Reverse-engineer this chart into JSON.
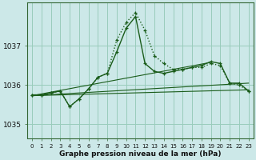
{
  "background_color": "#cce8e8",
  "plot_bg_color": "#cce8e8",
  "grid_color": "#99ccbb",
  "line_color": "#1a5c1a",
  "xlabel": "Graphe pression niveau de la mer (hPa)",
  "ylim": [
    1034.65,
    1038.1
  ],
  "xlim": [
    -0.5,
    23.5
  ],
  "yticks": [
    1035,
    1036,
    1037
  ],
  "xticks": [
    0,
    1,
    2,
    3,
    4,
    5,
    6,
    7,
    8,
    9,
    10,
    11,
    12,
    13,
    14,
    15,
    16,
    17,
    18,
    19,
    20,
    21,
    22,
    23
  ],
  "series": [
    {
      "x": [
        0,
        1,
        2,
        3,
        4,
        5,
        6,
        7,
        8,
        9,
        10,
        11,
        12,
        13,
        14,
        15,
        16,
        17,
        18,
        19,
        20,
        21,
        22,
        23
      ],
      "y": [
        1035.75,
        1035.75,
        1035.8,
        1035.85,
        1035.45,
        1035.65,
        1035.9,
        1036.2,
        1036.3,
        1037.15,
        1037.6,
        1037.85,
        1037.4,
        1036.75,
        1036.55,
        1036.4,
        1036.4,
        1036.45,
        1036.45,
        1036.55,
        1036.5,
        1036.05,
        1036.0,
        1035.85
      ],
      "style": ":",
      "marker": "+",
      "lw": 1.0,
      "ms": 3.5
    },
    {
      "x": [
        0,
        1,
        2,
        3,
        4,
        5,
        6,
        7,
        8,
        9,
        10,
        11,
        12,
        13,
        14,
        15,
        16,
        17,
        18,
        19,
        20,
        21,
        22,
        23
      ],
      "y": [
        1035.75,
        1035.75,
        1035.8,
        1035.85,
        1035.45,
        1035.65,
        1035.9,
        1036.2,
        1036.3,
        1036.85,
        1037.45,
        1037.75,
        1036.55,
        1036.35,
        1036.3,
        1036.35,
        1036.4,
        1036.45,
        1036.5,
        1036.6,
        1036.55,
        1036.05,
        1036.05,
        1035.85
      ],
      "style": "-",
      "marker": "+",
      "lw": 1.0,
      "ms": 3.5
    },
    {
      "x": [
        0,
        23
      ],
      "y": [
        1035.73,
        1035.88
      ],
      "style": "-",
      "marker": null,
      "lw": 0.8,
      "ms": 0
    },
    {
      "x": [
        0,
        19
      ],
      "y": [
        1035.73,
        1036.58
      ],
      "style": "-",
      "marker": null,
      "lw": 0.8,
      "ms": 0
    },
    {
      "x": [
        0,
        23
      ],
      "y": [
        1035.73,
        1036.05
      ],
      "style": "-",
      "marker": null,
      "lw": 0.8,
      "ms": 0
    }
  ],
  "spine_color": "#336633",
  "tick_fontsize": 5.0,
  "ytick_fontsize": 6.5,
  "xlabel_fontsize": 6.5
}
